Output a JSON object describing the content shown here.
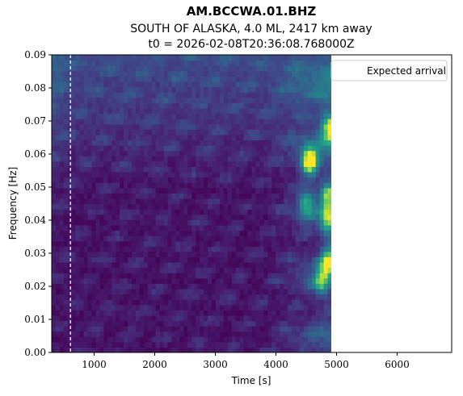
{
  "chart_data": {
    "type": "heatmap",
    "title": "AM.BCCWA.01.BHZ",
    "subtitle": "SOUTH OF ALASKA, 4.0 ML, 2417 km away",
    "subtitle2": "t0 = 2026-02-08T20:36:08.768000Z",
    "xlabel": "Time [s]",
    "ylabel": "Frequency [Hz]",
    "xlim": [
      300,
      6900
    ],
    "ylim": [
      0.0,
      0.09
    ],
    "x_ticks": [
      1000,
      2000,
      3000,
      4000,
      5000,
      6000
    ],
    "x_tick_labels": [
      "1000",
      "2000",
      "3000",
      "4000",
      "5000",
      "6000"
    ],
    "y_ticks": [
      0.0,
      0.01,
      0.02,
      0.03,
      0.04,
      0.05,
      0.06,
      0.07,
      0.08,
      0.09
    ],
    "y_tick_labels": [
      "0.00",
      "0.01",
      "0.02",
      "0.03",
      "0.04",
      "0.05",
      "0.06",
      "0.07",
      "0.08",
      "0.09"
    ],
    "spectrogram_x_range": [
      300,
      4920
    ],
    "colormap": "viridis",
    "expected_arrival": 610,
    "legend": {
      "location": "upper right",
      "entries": [
        "Expected arrival"
      ]
    },
    "hotspots": [
      {
        "time": 4560,
        "freq": 0.058,
        "level": 0.95
      },
      {
        "time": 4880,
        "freq": 0.068,
        "level": 0.75
      },
      {
        "time": 4880,
        "freq": 0.028,
        "level": 0.75
      },
      {
        "time": 4860,
        "freq": 0.04,
        "level": 0.65
      },
      {
        "time": 4860,
        "freq": 0.048,
        "level": 0.6
      },
      {
        "time": 4500,
        "freq": 0.045,
        "level": 0.55
      },
      {
        "time": 4750,
        "freq": 0.022,
        "level": 0.6
      }
    ],
    "grid": false
  }
}
